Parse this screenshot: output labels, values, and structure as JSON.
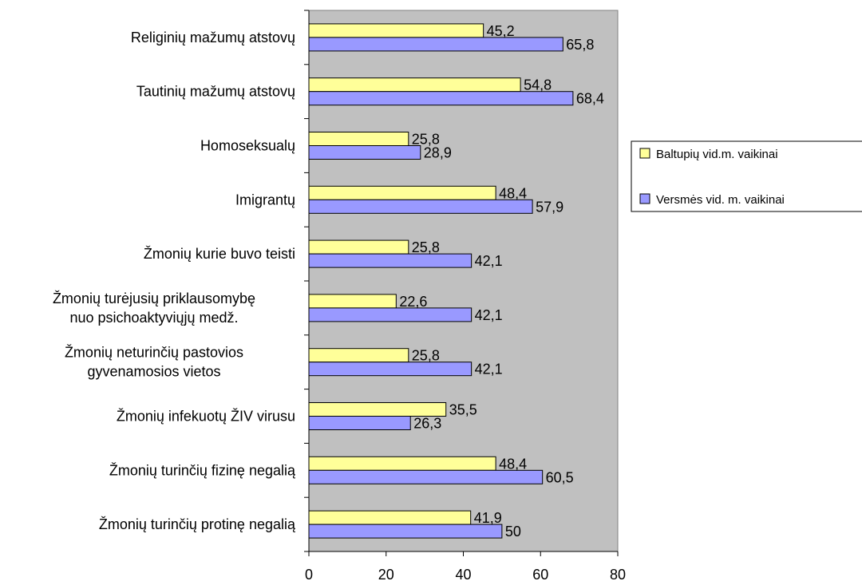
{
  "chart_data": {
    "type": "bar",
    "orientation": "horizontal",
    "categories": [
      "Religinių mažumų atstovų",
      "Tautinių mažumų atstovų",
      "Homoseksualų",
      "Imigrantų",
      "Žmonių kurie buvo teisti",
      "Žmonių turėjusių priklausomybę\nnuo psichoaktyviųjų medž.",
      "Žmonių neturinčių pastovios\ngyvenamosios vietos",
      "Žmonių infekuotų ŽIV virusu",
      "Žmonių turinčių fizinę negalią",
      "Žmonių turinčių protinę negalią"
    ],
    "series": [
      {
        "name": "Baltupių vid.m. vaikinai",
        "color": "#ffff99",
        "values": [
          45.2,
          54.8,
          25.8,
          48.4,
          25.8,
          22.6,
          25.8,
          35.5,
          48.4,
          41.9
        ],
        "labels": [
          "45,2",
          "54,8",
          "25,8",
          "48,4",
          "25,8",
          "22,6",
          "25,8",
          "35,5",
          "48,4",
          "41,9"
        ]
      },
      {
        "name": "Versmės vid. m. vaikinai",
        "color": "#9999ff",
        "values": [
          65.8,
          68.4,
          28.9,
          57.9,
          42.1,
          42.1,
          42.1,
          26.3,
          60.5,
          50
        ],
        "labels": [
          "65,8",
          "68,4",
          "28,9",
          "57,9",
          "42,1",
          "42,1",
          "42,1",
          "26,3",
          "60,5",
          "50"
        ]
      }
    ],
    "xlim": [
      0,
      80
    ],
    "xticks": [
      "0",
      "20",
      "40",
      "60",
      "80"
    ],
    "plot_background": "#c0c0c0",
    "grid": false,
    "legend_position": "right",
    "title": "",
    "xlabel": "",
    "ylabel": ""
  }
}
